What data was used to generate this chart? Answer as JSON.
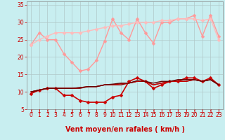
{
  "background_color": "#c8eef0",
  "grid_color": "#b0c8c8",
  "xlabel": "Vent moyen/en rafales ( km/h )",
  "xlabel_color": "#cc0000",
  "xlabel_fontsize": 7,
  "tick_color": "#cc0000",
  "tick_labelsize": 5.5,
  "ylim": [
    5,
    36
  ],
  "yticks": [
    5,
    10,
    15,
    20,
    25,
    30,
    35
  ],
  "xlim": [
    -0.5,
    23.5
  ],
  "xticks": [
    0,
    1,
    2,
    3,
    4,
    5,
    6,
    7,
    8,
    9,
    10,
    11,
    12,
    13,
    14,
    15,
    16,
    17,
    18,
    19,
    20,
    21,
    22,
    23
  ],
  "series": [
    {
      "label": "rafales_upper",
      "color": "#ff9999",
      "linewidth": 1.0,
      "marker": "D",
      "markersize": 2.5,
      "y": [
        23.5,
        27,
        25,
        25,
        21,
        18.5,
        16,
        16.5,
        19,
        24.5,
        31,
        27,
        25,
        31,
        27,
        24,
        30,
        30,
        31,
        31,
        32,
        26,
        32,
        26
      ]
    },
    {
      "label": "moy_upper",
      "color": "#ffbbbb",
      "linewidth": 1.0,
      "marker": "D",
      "markersize": 2.5,
      "y": [
        23.5,
        25,
        26,
        27,
        27,
        27,
        27,
        27.5,
        28,
        28.5,
        29,
        29,
        29.5,
        30,
        30,
        30,
        30.5,
        30.5,
        31,
        31,
        31,
        30.5,
        31,
        25
      ]
    },
    {
      "label": "rafales_dark",
      "color": "#cc0000",
      "linewidth": 1.2,
      "marker": "D",
      "markersize": 2.5,
      "y": [
        9.5,
        10.5,
        11,
        11,
        9,
        9,
        7.5,
        7,
        7,
        7,
        8.5,
        9,
        13,
        14,
        13,
        11,
        12,
        13,
        13,
        14,
        14,
        13,
        14,
        12
      ]
    },
    {
      "label": "moy1_dark",
      "color": "#880000",
      "linewidth": 1.0,
      "marker": null,
      "markersize": 0,
      "y": [
        10,
        10.5,
        11,
        11,
        11,
        11,
        11,
        11.5,
        11.5,
        12,
        12,
        12,
        12.5,
        13,
        13,
        12,
        12.5,
        13,
        13,
        13,
        13.5,
        13,
        13.5,
        12
      ]
    },
    {
      "label": "moy2_dark",
      "color": "#cc0000",
      "linewidth": 1.0,
      "marker": null,
      "markersize": 0,
      "y": [
        10,
        10.5,
        11,
        11,
        11,
        11,
        11.2,
        11.5,
        11.5,
        12,
        12,
        12.3,
        12.5,
        13,
        13,
        12,
        12.5,
        13,
        13,
        13,
        13.5,
        13,
        13.5,
        12
      ]
    },
    {
      "label": "moy3_dark",
      "color": "#660000",
      "linewidth": 1.0,
      "marker": null,
      "markersize": 0,
      "y": [
        10,
        10.5,
        11,
        11,
        11,
        11,
        11.2,
        11.5,
        11.5,
        12,
        12.2,
        12.5,
        12.5,
        13.2,
        13,
        12.5,
        13,
        13,
        13.5,
        13.5,
        13.5,
        13,
        13.5,
        12
      ]
    }
  ],
  "arrow_color": "#cc0000",
  "arrow_fontsize": 5.5
}
